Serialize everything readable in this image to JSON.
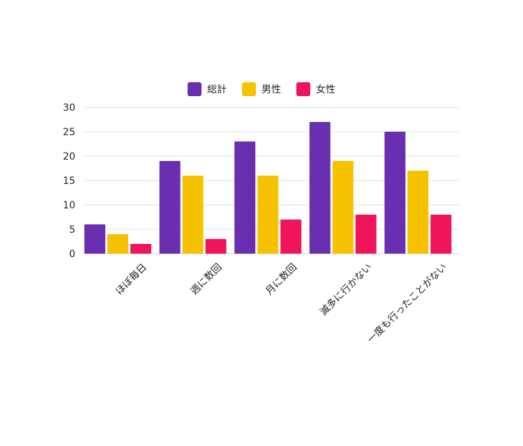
{
  "chart_data": {
    "type": "bar",
    "title": "",
    "xlabel": "",
    "ylabel": "",
    "ylim": [
      0,
      30
    ],
    "yticks": [
      0,
      5,
      10,
      15,
      20,
      25,
      30
    ],
    "grid": true,
    "legend_position": "top-center",
    "categories": [
      "ほぼ毎日",
      "週に数回",
      "月に数回",
      "滅多に行かない",
      "一度も行ったことがない"
    ],
    "series": [
      {
        "name": "総計",
        "color": "#6a2fb1",
        "values": [
          6,
          19,
          23,
          27,
          25
        ]
      },
      {
        "name": "男性",
        "color": "#f6c200",
        "values": [
          4,
          16,
          16,
          19,
          17
        ]
      },
      {
        "name": "女性",
        "color": "#f0145a",
        "values": [
          2,
          3,
          7,
          8,
          8
        ]
      }
    ]
  }
}
